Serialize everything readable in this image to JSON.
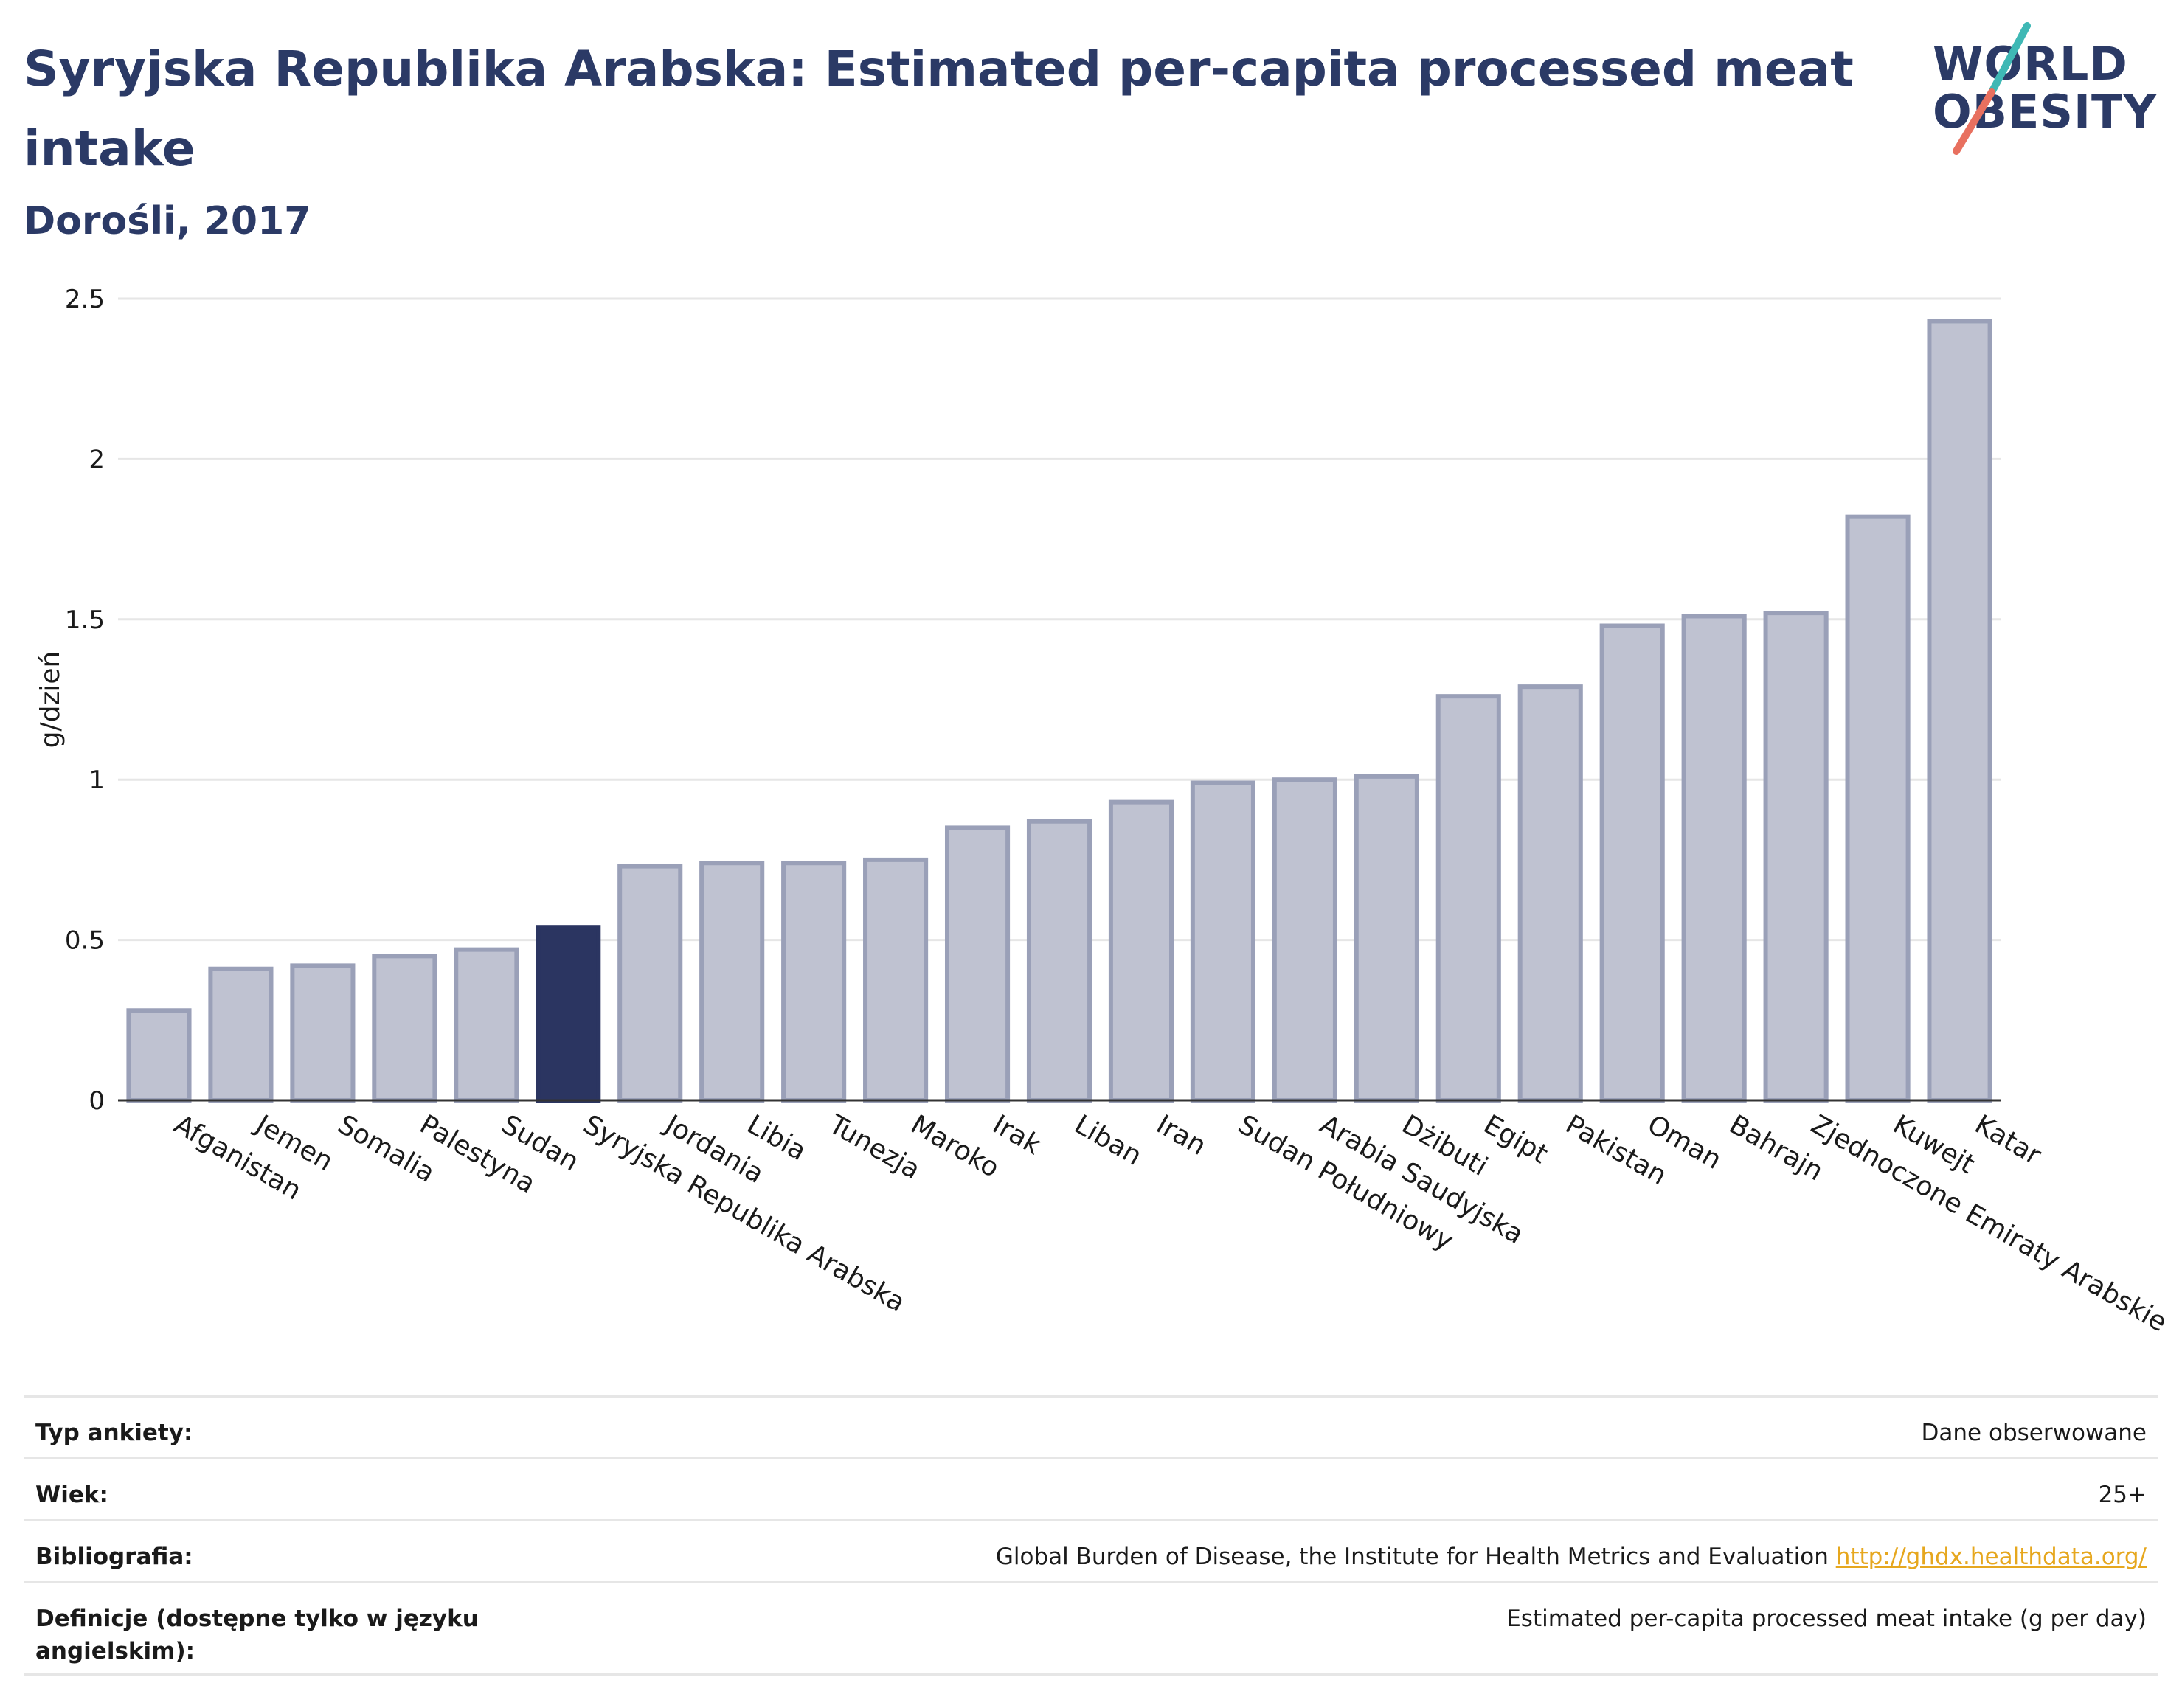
{
  "header": {
    "title": "Syryjska Republika Arabska: Estimated per-capita processed meat intake",
    "subtitle": "Dorośli, 2017",
    "logo_top": "WORLD",
    "logo_bottom": "OBESITY"
  },
  "colors": {
    "title": "#2b3a66",
    "highlight_bar": "#2b3561",
    "bar_fill": "#bfc2d1",
    "bar_stroke": "#9aa0b8",
    "link": "#e6a71e",
    "logo_slash_teal": "#3fb8b5",
    "logo_slash_coral": "#e8705f"
  },
  "chart_data": {
    "type": "bar",
    "title": "",
    "xlabel": "",
    "ylabel": "g/dzień",
    "ylim": [
      0,
      2.5
    ],
    "yticks": [
      "0",
      "0.5",
      "1",
      "1.5",
      "2",
      "2.5"
    ],
    "grid": true,
    "highlight": "Syryjska Republika Arabska",
    "categories": [
      "Afganistan",
      "Jemen",
      "Somalia",
      "Palestyna",
      "Sudan",
      "Syryjska Republika Arabska",
      "Jordania",
      "Libia",
      "Tunezja",
      "Maroko",
      "Irak",
      "Liban",
      "Iran",
      "Sudan Południowy",
      "Arabia Saudyjska",
      "Dżibuti",
      "Egipt",
      "Pakistan",
      "Oman",
      "Bahrajn",
      "Zjednoczone Emiraty Arabskie",
      "Kuwejt",
      "Katar"
    ],
    "values": [
      0.28,
      0.41,
      0.42,
      0.45,
      0.47,
      0.54,
      0.73,
      0.74,
      0.74,
      0.75,
      0.85,
      0.87,
      0.93,
      0.99,
      1.0,
      1.01,
      1.26,
      1.29,
      1.48,
      1.51,
      1.52,
      1.82,
      2.43
    ]
  },
  "info": {
    "survey_type_label": "Typ ankiety:",
    "survey_type_value": "Dane obserwowane",
    "age_label": "Wiek:",
    "age_value": "25+",
    "bibliography_label": "Bibliografia:",
    "bibliography_text": "Global Burden of Disease, the Institute for Health Metrics and Evaluation ",
    "bibliography_link": "http://ghdx.healthdata.org/",
    "definitions_label": "Definicje (dostępne tylko w języku angielskim):",
    "definitions_value": "Estimated per-capita processed meat intake (g per day)"
  }
}
